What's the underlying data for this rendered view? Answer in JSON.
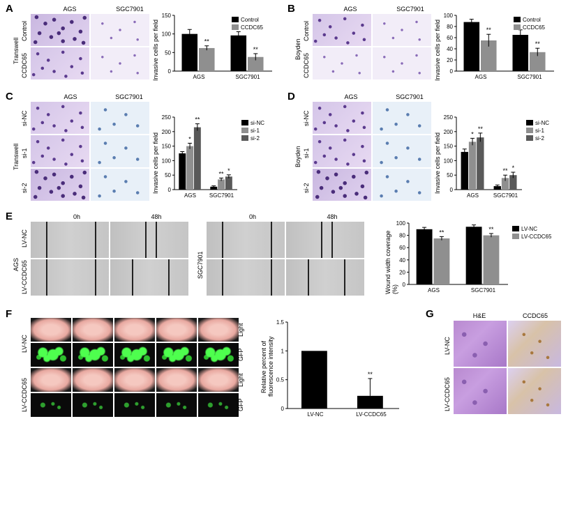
{
  "panelLabels": {
    "A": "A",
    "B": "B",
    "C": "C",
    "D": "D",
    "E": "E",
    "F": "F",
    "G": "G"
  },
  "colors": {
    "black": "#000000",
    "midgray": "#8f8f8f",
    "darkgray": "#595959",
    "axis": "#000000",
    "bg": "#ffffff"
  },
  "panelA": {
    "assay": "Transwell",
    "cellLines": [
      "AGS",
      "SGC7901"
    ],
    "rowLabels": [
      "Control",
      "CCDC65"
    ],
    "chart": {
      "type": "bar",
      "ylabel": "Invasive cells per field",
      "ylim": [
        0,
        150
      ],
      "ytick_step": 50,
      "groups": [
        "AGS",
        "SGC7901"
      ],
      "series": [
        {
          "name": "Control",
          "color": "#000000",
          "values": [
            100,
            96
          ],
          "err": [
            12,
            10
          ]
        },
        {
          "name": "CCDC65",
          "color": "#8f8f8f",
          "values": [
            62,
            38
          ],
          "err": [
            6,
            9
          ],
          "sig": [
            "**",
            "**"
          ]
        }
      ],
      "bar_width": 0.35,
      "font_size": 8
    }
  },
  "panelB": {
    "assay": "Boyden",
    "cellLines": [
      "AGS",
      "SGC7901"
    ],
    "rowLabels": [
      "Control",
      "CCDC65"
    ],
    "chart": {
      "type": "bar",
      "ylabel": "Invasive cells per field",
      "ylim": [
        0,
        100
      ],
      "ytick_step": 20,
      "groups": [
        "AGS",
        "SGC7901"
      ],
      "series": [
        {
          "name": "Control",
          "color": "#000000",
          "values": [
            88,
            65
          ],
          "err": [
            5,
            9
          ]
        },
        {
          "name": "CCDC65",
          "color": "#8f8f8f",
          "values": [
            55,
            34
          ],
          "err": [
            11,
            7
          ],
          "sig": [
            "**",
            "**"
          ]
        }
      ],
      "bar_width": 0.35,
      "font_size": 8
    }
  },
  "panelC": {
    "assay": "Transwell",
    "cellLines": [
      "AGS",
      "SGC7901"
    ],
    "rowLabels": [
      "si-NC",
      "si-1",
      "si-2"
    ],
    "chart": {
      "type": "bar",
      "ylabel": "Invasive cells per field",
      "ylim": [
        0,
        250
      ],
      "ytick_step": 50,
      "groups": [
        "AGS",
        "SGC7901"
      ],
      "series": [
        {
          "name": "si-NC",
          "color": "#000000",
          "values": [
            125,
            10
          ],
          "err": [
            6,
            3
          ]
        },
        {
          "name": "si-1",
          "color": "#8f8f8f",
          "values": [
            150,
            35
          ],
          "err": [
            10,
            5
          ],
          "sig": [
            "*",
            "**"
          ]
        },
        {
          "name": "si-2",
          "color": "#595959",
          "values": [
            215,
            45
          ],
          "err": [
            12,
            6
          ],
          "sig": [
            "**",
            "*"
          ]
        }
      ],
      "bar_width": 0.24,
      "font_size": 8
    }
  },
  "panelD": {
    "assay": "Boyden",
    "cellLines": [
      "AGS",
      "SGC7901"
    ],
    "rowLabels": [
      "si-NC",
      "si-1",
      "si-2"
    ],
    "chart": {
      "type": "bar",
      "ylabel": "Invasive cells per field",
      "ylim": [
        0,
        250
      ],
      "ytick_step": 50,
      "groups": [
        "AGS",
        "SGC7901"
      ],
      "series": [
        {
          "name": "si-NC",
          "color": "#000000",
          "values": [
            130,
            12
          ],
          "err": [
            10,
            4
          ]
        },
        {
          "name": "si-1",
          "color": "#8f8f8f",
          "values": [
            165,
            40
          ],
          "err": [
            12,
            10
          ],
          "sig": [
            "*",
            "**"
          ]
        },
        {
          "name": "si-2",
          "color": "#595959",
          "values": [
            180,
            50
          ],
          "err": [
            15,
            10
          ],
          "sig": [
            "**",
            "*"
          ]
        }
      ],
      "bar_width": 0.24,
      "font_size": 8
    }
  },
  "panelE": {
    "timepoints": [
      "0h",
      "48h"
    ],
    "rowLabels": [
      "LV-NC",
      "LV-CCDC65"
    ],
    "cellLabels": [
      "AGS",
      "SGC7901"
    ],
    "chart": {
      "type": "bar",
      "ylabel": "Wound width coverage (%)",
      "ylim": [
        0,
        100
      ],
      "ytick_step": 20,
      "groups": [
        "AGS",
        "SGC7901"
      ],
      "series": [
        {
          "name": "LV-NC",
          "color": "#000000",
          "values": [
            90,
            94
          ],
          "err": [
            3,
            3
          ]
        },
        {
          "name": "LV-CCDC65",
          "color": "#8f8f8f",
          "values": [
            75,
            80
          ],
          "err": [
            3,
            3
          ],
          "sig": [
            "**",
            "**"
          ]
        }
      ],
      "bar_width": 0.35,
      "font_size": 8
    }
  },
  "panelF": {
    "rowLabels": [
      "LV-NC",
      "LV-CCDC65"
    ],
    "sideLabels": [
      "Light",
      "GFP",
      "Light",
      "GFP"
    ],
    "lungCount": 5,
    "chart": {
      "type": "bar",
      "ylabel": "Relative percent of\nfluorescence intensity",
      "ylim": [
        0,
        1.5
      ],
      "ytick_step": 0.5,
      "groups": [
        "LV-NC",
        "LV-CCDC65"
      ],
      "series": [
        {
          "name": "",
          "color": "#000000",
          "values": [
            1.0,
            0.22
          ],
          "err": [
            0,
            0.3
          ],
          "sig": [
            "",
            "**"
          ]
        }
      ],
      "bar_width": 0.5,
      "font_size": 8
    }
  },
  "panelG": {
    "colLabels": [
      "H&E",
      "CCDC65"
    ],
    "rowLabels": [
      "LV-NC",
      "LV-CCDC65"
    ]
  }
}
